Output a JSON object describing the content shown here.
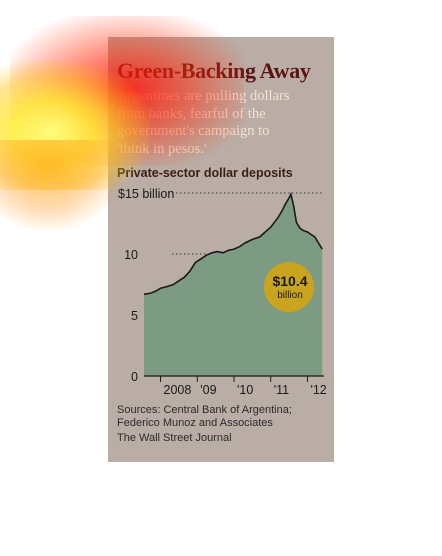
{
  "title": "Green-Backing Away",
  "subtitle": "Argentines are pulling dollars\nfrom banks, fearful of the\ngovernment's campaign to\n'think in pesos.'",
  "deposits_label": "Private-sector dollar deposits",
  "callout": {
    "value": "$10.4",
    "unit": "billion"
  },
  "source": "Sources: Central Bank of Argentina; Federico Munoz and Associates",
  "publisher": "The Wall Street Journal",
  "colors": {
    "area": "#7d9a82",
    "line": "#1a1a1a",
    "callout": "#c9a41f",
    "title": "#5a1313"
  },
  "chart_data": {
    "type": "area",
    "ylim": [
      0,
      15
    ],
    "xlim": [
      2007.55,
      2012.45
    ],
    "yticks": [
      0,
      5,
      10,
      15
    ],
    "ytick_labels": [
      "0",
      "5",
      "10",
      "$15 billion"
    ],
    "xtick_labels": [
      {
        "label": "2008",
        "x": 2008.0
      },
      {
        "label": "'09",
        "x": 2009.0
      },
      {
        "label": "'10",
        "x": 2010.0
      },
      {
        "label": "'11",
        "x": 2011.0
      },
      {
        "label": "'12",
        "x": 2012.0
      }
    ],
    "grid": "dotted at 10 and 15",
    "x": [
      2007.55,
      2007.75,
      2007.9,
      2008.0,
      2008.15,
      2008.35,
      2008.5,
      2008.65,
      2008.8,
      2008.95,
      2009.1,
      2009.25,
      2009.4,
      2009.55,
      2009.7,
      2009.85,
      2010.0,
      2010.15,
      2010.3,
      2010.5,
      2010.7,
      2010.85,
      2011.0,
      2011.1,
      2011.2,
      2011.3,
      2011.4,
      2011.5,
      2011.55,
      2011.62,
      2011.7,
      2011.8,
      2011.9,
      2012.0,
      2012.1,
      2012.2,
      2012.3,
      2012.4
    ],
    "values": [
      6.7,
      6.8,
      7.0,
      7.2,
      7.3,
      7.5,
      7.8,
      8.1,
      8.6,
      9.3,
      9.6,
      9.9,
      10.1,
      10.2,
      10.1,
      10.3,
      10.4,
      10.6,
      10.9,
      11.2,
      11.4,
      11.8,
      12.2,
      12.6,
      13.0,
      13.5,
      14.1,
      14.6,
      14.9,
      14.0,
      12.6,
      12.1,
      11.9,
      11.8,
      11.6,
      11.4,
      10.9,
      10.4
    ]
  }
}
